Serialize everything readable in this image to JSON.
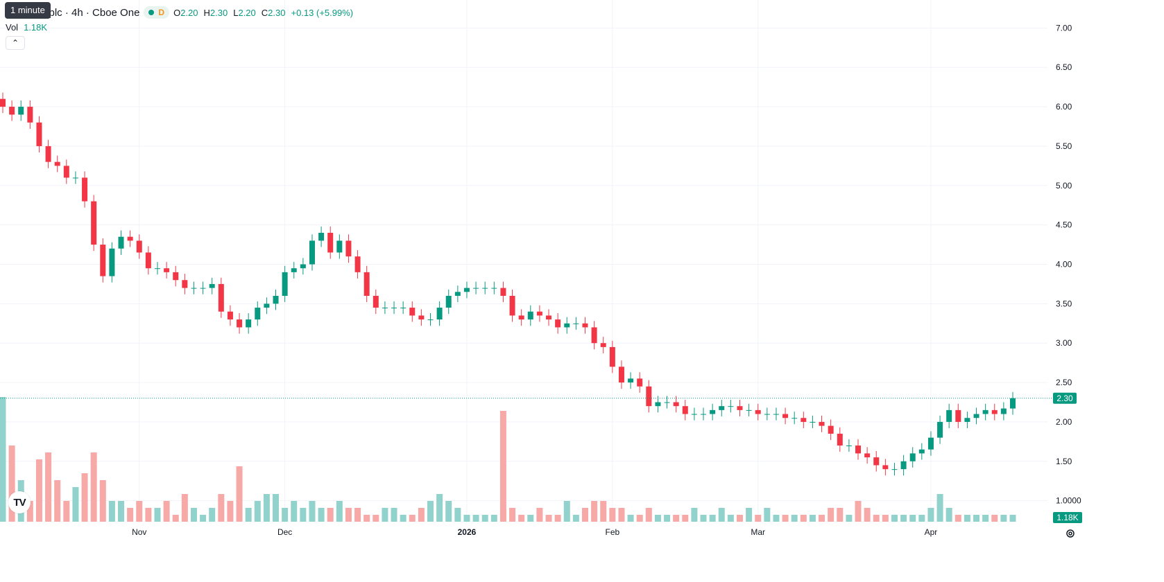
{
  "tooltip": "1 minute",
  "header": {
    "symbol_title": "a plc · 4h · Cboe One",
    "interval_badge": "D",
    "o_label": "O",
    "o_value": "2.20",
    "h_label": "H",
    "h_value": "2.30",
    "l_label": "L",
    "l_value": "2.20",
    "c_label": "C",
    "c_value": "2.30",
    "change": "+0.13 (+5.99%)"
  },
  "volume_legend": {
    "label": "Vol",
    "value": "1.18K"
  },
  "colors": {
    "up": "#089981",
    "down": "#f23645",
    "up_vol": "#92d2cc",
    "down_vol": "#f7a9a7",
    "grid": "#f0f3fa",
    "tag": "#089981"
  },
  "icons": {
    "collapse": "chevron-up-icon",
    "logo": "tradingview-logo-icon",
    "settings": "settings-gear-icon"
  },
  "logo_text": "TV",
  "chart_data": {
    "type": "candlestick",
    "title": "a plc · 4h · Cboe One",
    "ylim": [
      0.9,
      7.1
    ],
    "y_ticks": [
      "7.00",
      "6.50",
      "6.00",
      "5.50",
      "5.00",
      "4.50",
      "4.00",
      "3.50",
      "3.00",
      "2.50",
      "2.00",
      "1.50",
      "1.0000"
    ],
    "x_ticks": [
      "Nov",
      "Dec",
      "2026",
      "Feb",
      "Mar",
      "Apr"
    ],
    "last_price": "2.30",
    "volume_last": "1.18K",
    "close_series": [
      6.0,
      5.9,
      6.0,
      5.8,
      5.5,
      5.3,
      5.25,
      5.1,
      5.1,
      4.8,
      4.25,
      3.85,
      4.2,
      4.35,
      4.3,
      4.15,
      3.95,
      3.95,
      3.9,
      3.8,
      3.7,
      3.7,
      3.7,
      3.75,
      3.4,
      3.3,
      3.2,
      3.3,
      3.45,
      3.5,
      3.6,
      3.9,
      3.95,
      4.0,
      4.3,
      4.4,
      4.15,
      4.3,
      4.1,
      3.9,
      3.6,
      3.45,
      3.45,
      3.45,
      3.45,
      3.35,
      3.3,
      3.3,
      3.45,
      3.6,
      3.65,
      3.7,
      3.7,
      3.7,
      3.7,
      3.6,
      3.35,
      3.3,
      3.4,
      3.35,
      3.3,
      3.2,
      3.25,
      3.25,
      3.2,
      3.0,
      2.95,
      2.7,
      2.5,
      2.55,
      2.45,
      2.2,
      2.25,
      2.25,
      2.2,
      2.1,
      2.1,
      2.1,
      2.15,
      2.2,
      2.2,
      2.15,
      2.15,
      2.1,
      2.1,
      2.1,
      2.05,
      2.05,
      2.0,
      2.0,
      1.95,
      1.85,
      1.7,
      1.7,
      1.6,
      1.55,
      1.45,
      1.4,
      1.4,
      1.5,
      1.6,
      1.65,
      1.8,
      2.0,
      2.15,
      2.0,
      2.05,
      2.1,
      2.15,
      2.1,
      2.17,
      2.3
    ],
    "volume_series": [
      1.8,
      1.1,
      0.6,
      0.3,
      0.9,
      1.0,
      0.6,
      0.3,
      0.5,
      0.7,
      1.0,
      0.6,
      0.3,
      0.3,
      0.2,
      0.3,
      0.2,
      0.2,
      0.3,
      0.1,
      0.4,
      0.2,
      0.1,
      0.2,
      0.4,
      0.3,
      0.8,
      0.2,
      0.3,
      0.4,
      0.4,
      0.2,
      0.3,
      0.2,
      0.3,
      0.2,
      0.2,
      0.3,
      0.2,
      0.2,
      0.1,
      0.1,
      0.2,
      0.2,
      0.1,
      0.1,
      0.2,
      0.3,
      0.4,
      0.3,
      0.2,
      0.1,
      0.1,
      0.1,
      0.1,
      1.6,
      0.2,
      0.1,
      0.1,
      0.2,
      0.1,
      0.1,
      0.3,
      0.1,
      0.2,
      0.3,
      0.3,
      0.2,
      0.2,
      0.1,
      0.1,
      0.2,
      0.1,
      0.1,
      0.1,
      0.1,
      0.2,
      0.1,
      0.1,
      0.2,
      0.1,
      0.1,
      0.2,
      0.1,
      0.2,
      0.1,
      0.1,
      0.1,
      0.1,
      0.1,
      0.1,
      0.2,
      0.2,
      0.1,
      0.3,
      0.2,
      0.1,
      0.1,
      0.1,
      0.1,
      0.1,
      0.1,
      0.2,
      0.4,
      0.2,
      0.1,
      0.1,
      0.1,
      0.1,
      0.1,
      0.1,
      0.1
    ]
  }
}
